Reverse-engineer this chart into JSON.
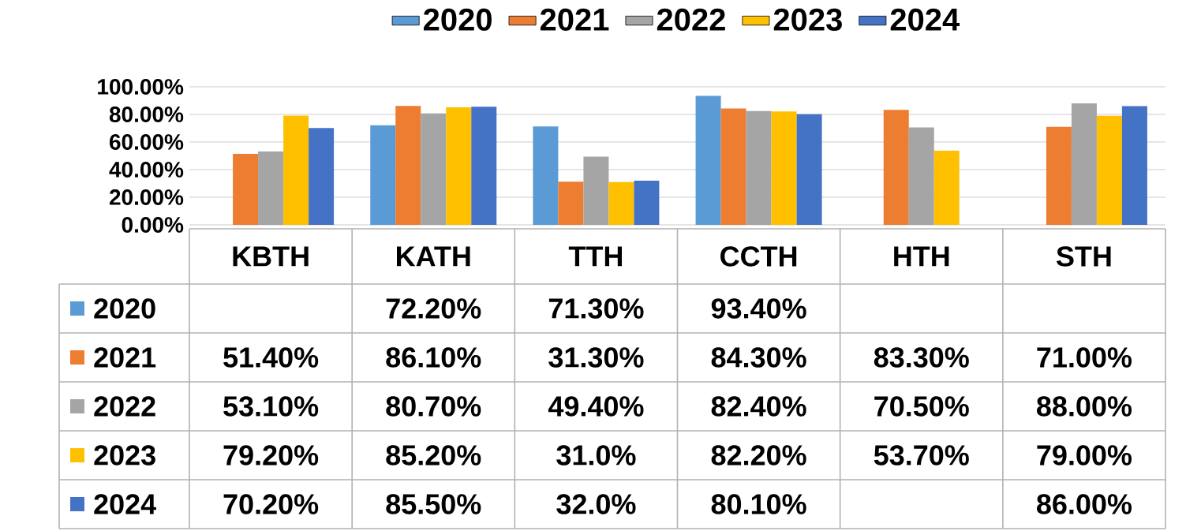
{
  "chart_data": {
    "type": "bar",
    "categories": [
      "KBTH",
      "KATH",
      "TTH",
      "CCTH",
      "HTH",
      "STH"
    ],
    "series": [
      {
        "name": "2020",
        "color": "#5b9bd5",
        "values": [
          null,
          72.2,
          71.3,
          93.4,
          null,
          null
        ],
        "value_labels": [
          null,
          "72.20%",
          "71.30%",
          "93.40%",
          null,
          null
        ]
      },
      {
        "name": "2021",
        "color": "#ed7d31",
        "values": [
          51.4,
          86.1,
          31.3,
          84.3,
          83.3,
          71.0
        ],
        "value_labels": [
          "51.40%",
          "86.10%",
          "31.30%",
          "84.30%",
          "83.30%",
          "71.00%"
        ]
      },
      {
        "name": "2022",
        "color": "#a5a5a5",
        "values": [
          53.1,
          80.7,
          49.4,
          82.4,
          70.5,
          88.0
        ],
        "value_labels": [
          "53.10%",
          "80.70%",
          "49.40%",
          "82.40%",
          "70.50%",
          "88.00%"
        ]
      },
      {
        "name": "2023",
        "color": "#ffc000",
        "values": [
          79.2,
          85.2,
          31.0,
          82.2,
          53.7,
          79.0
        ],
        "value_labels": [
          "79.20%",
          "85.20%",
          "31.0%",
          "82.20%",
          "53.70%",
          "79.00%"
        ]
      },
      {
        "name": "2024",
        "color": "#4472c4",
        "values": [
          70.2,
          85.5,
          32.0,
          80.1,
          null,
          86.0
        ],
        "value_labels": [
          "70.20%",
          "85.50%",
          "32.0%",
          "80.10%",
          null,
          "86.00%"
        ]
      }
    ],
    "ylim": [
      0,
      100
    ],
    "yticks": [
      {
        "value": 0,
        "label": "0.00%"
      },
      {
        "value": 20,
        "label": "20.00%"
      },
      {
        "value": 40,
        "label": "40.00%"
      },
      {
        "value": 60,
        "label": "60.00%"
      },
      {
        "value": 80,
        "label": "80.00%"
      },
      {
        "value": 100,
        "label": "100.00%"
      }
    ],
    "grid": "y",
    "legend": "top"
  }
}
